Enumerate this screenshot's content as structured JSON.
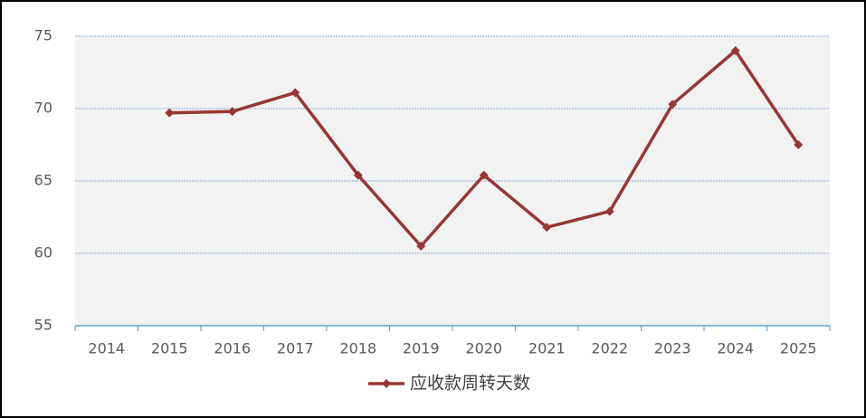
{
  "chart_data": {
    "type": "line",
    "categories": [
      "2014",
      "2015",
      "2016",
      "2017",
      "2018",
      "2019",
      "2020",
      "2021",
      "2022",
      "2023",
      "2024",
      "2025"
    ],
    "series": [
      {
        "name": "应收款周转天数",
        "color": "#953735",
        "values": [
          null,
          69.7,
          69.8,
          71.1,
          65.4,
          60.5,
          65.4,
          61.8,
          62.9,
          70.3,
          74.0,
          67.5
        ]
      }
    ],
    "ylim": [
      55,
      75
    ],
    "yticks": [
      55,
      60,
      65,
      70,
      75
    ],
    "grid": true,
    "legend": "bottom"
  }
}
